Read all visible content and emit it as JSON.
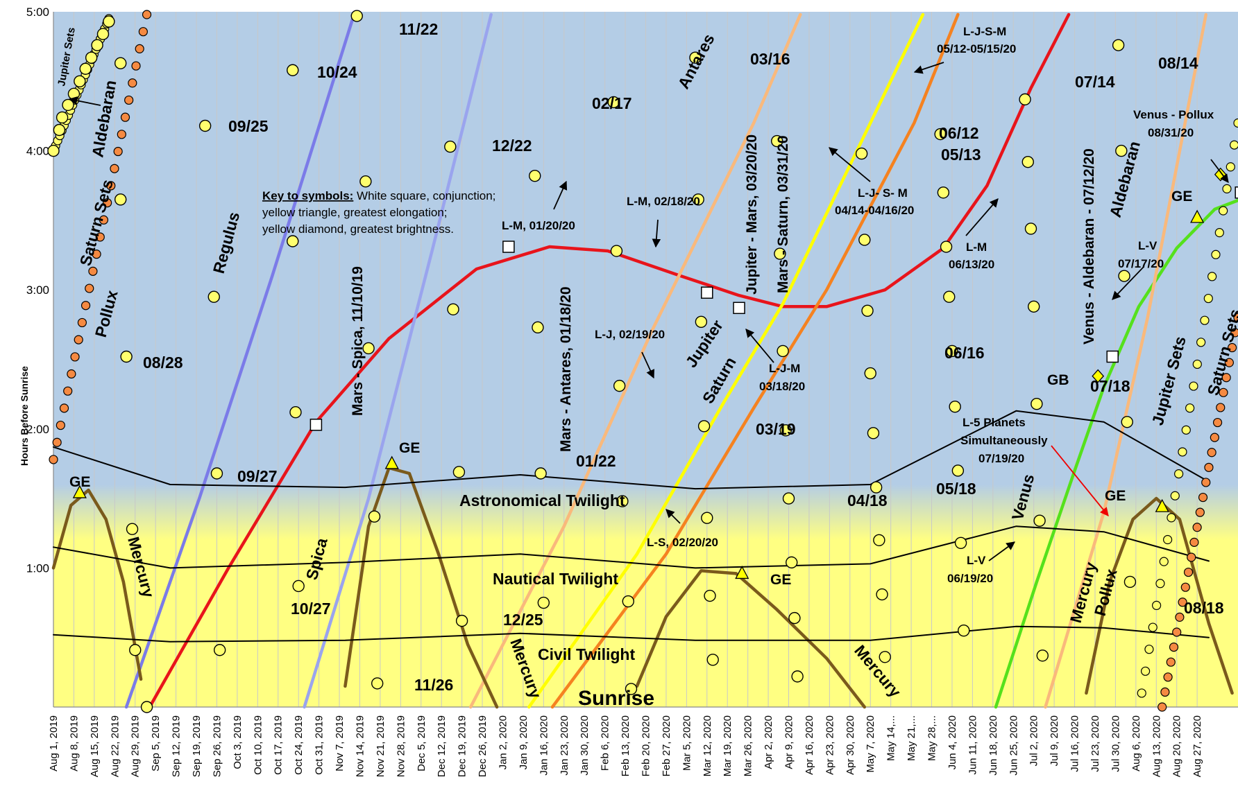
{
  "chart_data": {
    "type": "line",
    "ylabel": "Hours Before Sunrise",
    "y_ticks": [
      "5:00",
      "4:00",
      "3:00",
      "2:00",
      "1:00"
    ],
    "ylim": [
      0,
      5
    ],
    "x_range": [
      "Aug 1, 2019",
      "Aug 31, 2020"
    ],
    "x_ticks": [
      "Aug 1, 2019",
      "Aug 8, 2019",
      "Aug 15, 2019",
      "Aug 22, 2019",
      "Aug 29, 2019",
      "Sep 5, 2019",
      "Sep 12, 2019",
      "Sep 19, 2019",
      "Sep 26, 2019",
      "Oct 3, 2019",
      "Oct 10, 2019",
      "Oct 17, 2019",
      "Oct 24, 2019",
      "Oct 31, 2019",
      "Nov 7, 2019",
      "Nov 14, 2019",
      "Nov 21, 2019",
      "Nov 28, 2019",
      "Dec 5, 2019",
      "Dec 12, 2019",
      "Dec 19, 2019",
      "Dec 26, 2019",
      "Jan 2, 2020",
      "Jan 9, 2020",
      "Jan 16, 2020",
      "Jan 23, 2020",
      "Jan 30, 2020",
      "Feb 6, 2020",
      "Feb 13, 2020",
      "Feb 20, 2020",
      "Feb 27, 2020",
      "Mar 5, 2020",
      "Mar 12, 2020",
      "Mar 19, 2020",
      "Mar 26, 2020",
      "Apr 2, 2020",
      "Apr 9, 2020",
      "Apr 16, 2020",
      "Apr 23, 2020",
      "Apr 30, 2020",
      "May 7, 2020",
      "May 14,...",
      "May 21,...",
      "May 28,...",
      "Jun 4, 2020",
      "Jun 11, 2020",
      "Jun 18, 2020",
      "Jun 25, 2020",
      "Jul 2, 2020",
      "Jul 9, 2020",
      "Jul 16, 2020",
      "Jul 23, 2020",
      "Jul 30, 2020",
      "Aug 6, 2020",
      "Aug 13, 2020",
      "Aug 20, 2020",
      "Aug 27, 2020"
    ],
    "series": [
      {
        "name": "Mars",
        "color": "#e8141b",
        "points": [
          [
            33,
            0
          ],
          [
            60,
            1.0
          ],
          [
            90,
            2.05
          ],
          [
            115,
            2.65
          ],
          [
            145,
            3.15
          ],
          [
            170,
            3.31
          ],
          [
            190,
            3.28
          ],
          [
            215,
            3.1
          ],
          [
            235,
            2.96
          ],
          [
            250,
            2.88
          ],
          [
            265,
            2.88
          ],
          [
            285,
            3.0
          ],
          [
            305,
            3.3
          ],
          [
            320,
            3.75
          ],
          [
            335,
            4.45
          ],
          [
            348,
            4.98
          ]
        ]
      },
      {
        "name": "Jupiter",
        "color": "#ffff00",
        "points": [
          [
            163,
            0
          ],
          [
            200,
            1.1
          ],
          [
            230,
            2.2
          ],
          [
            250,
            2.9
          ],
          [
            280,
            4.2
          ],
          [
            298,
            4.98
          ]
        ]
      },
      {
        "name": "Saturn",
        "color": "#f58220",
        "points": [
          [
            171,
            0
          ],
          [
            210,
            1.1
          ],
          [
            240,
            2.15
          ],
          [
            265,
            3.0
          ],
          [
            295,
            4.2
          ],
          [
            310,
            4.98
          ]
        ]
      },
      {
        "name": "Antares",
        "color": "#f9b97c",
        "points": [
          [
            143,
            0
          ],
          [
            175,
            1.3
          ],
          [
            205,
            2.7
          ],
          [
            240,
            4.2
          ],
          [
            256,
            4.98
          ]
        ]
      },
      {
        "name": "Regulus",
        "color": "#7b7be8",
        "points": [
          [
            25,
            0
          ],
          [
            50,
            1.5
          ],
          [
            75,
            3.1
          ],
          [
            103,
            4.98
          ]
        ]
      },
      {
        "name": "Spica",
        "color": "#9aa4ee",
        "points": [
          [
            86,
            0
          ],
          [
            108,
            1.5
          ],
          [
            130,
            3.3
          ],
          [
            150,
            4.98
          ]
        ]
      },
      {
        "name": "Venus",
        "color": "#55e11c",
        "points": [
          [
            323,
            0
          ],
          [
            337,
            0.9
          ],
          [
            350,
            1.7
          ],
          [
            360,
            2.3
          ],
          [
            372,
            2.88
          ],
          [
            385,
            3.3
          ],
          [
            398,
            3.58
          ],
          [
            413,
            3.7
          ]
        ]
      },
      {
        "name": "Aldebaran",
        "color": "#f9b97c",
        "points": [
          [
            340,
            0
          ],
          [
            360,
            1.4
          ],
          [
            375,
            2.8
          ],
          [
            395,
            4.98
          ]
        ]
      },
      {
        "name": "Mercury GE 2019-08",
        "color": "#7a5a1c",
        "points": [
          [
            0,
            1.0
          ],
          [
            6,
            1.45
          ],
          [
            12,
            1.56
          ],
          [
            18,
            1.35
          ],
          [
            24,
            0.9
          ],
          [
            30,
            0.2
          ]
        ]
      },
      {
        "name": "Mercury GE 2019-11",
        "color": "#7a5a1c",
        "points": [
          [
            100,
            0.15
          ],
          [
            108,
            1.3
          ],
          [
            115,
            1.72
          ],
          [
            122,
            1.68
          ],
          [
            132,
            1.1
          ],
          [
            142,
            0.45
          ],
          [
            152,
            0
          ]
        ]
      },
      {
        "name": "Mercury GE 2020-03",
        "color": "#7a5a1c",
        "points": [
          [
            200,
            0.15
          ],
          [
            210,
            0.65
          ],
          [
            222,
            0.98
          ],
          [
            234,
            0.96
          ],
          [
            248,
            0.7
          ],
          [
            265,
            0.35
          ],
          [
            278,
            0
          ]
        ]
      },
      {
        "name": "Mercury GE 2020-07",
        "color": "#7a5a1c",
        "points": [
          [
            354,
            0.1
          ],
          [
            362,
            0.9
          ],
          [
            370,
            1.35
          ],
          [
            378,
            1.5
          ],
          [
            386,
            1.35
          ],
          [
            396,
            0.6
          ],
          [
            404,
            0.1
          ]
        ]
      },
      {
        "name": "Astronomical Twilight",
        "color": "#000000",
        "points": [
          [
            0,
            1.87
          ],
          [
            40,
            1.6
          ],
          [
            100,
            1.58
          ],
          [
            160,
            1.67
          ],
          [
            220,
            1.57
          ],
          [
            280,
            1.6
          ],
          [
            330,
            2.13
          ],
          [
            360,
            2.05
          ],
          [
            396,
            1.62
          ]
        ]
      },
      {
        "name": "Nautical Twilight",
        "color": "#000000",
        "points": [
          [
            0,
            1.15
          ],
          [
            40,
            1.0
          ],
          [
            100,
            1.04
          ],
          [
            160,
            1.1
          ],
          [
            220,
            1.0
          ],
          [
            280,
            1.03
          ],
          [
            330,
            1.3
          ],
          [
            360,
            1.26
          ],
          [
            396,
            1.05
          ]
        ]
      },
      {
        "name": "Civil Twilight",
        "color": "#000000",
        "points": [
          [
            0,
            0.52
          ],
          [
            40,
            0.47
          ],
          [
            100,
            0.48
          ],
          [
            160,
            0.53
          ],
          [
            220,
            0.48
          ],
          [
            280,
            0.48
          ],
          [
            330,
            0.58
          ],
          [
            360,
            0.57
          ],
          [
            396,
            0.5
          ]
        ]
      }
    ],
    "moon_points": [
      [
        0,
        4.0
      ],
      [
        2,
        4.15
      ],
      [
        3,
        4.24
      ],
      [
        5,
        4.33
      ],
      [
        7,
        4.41
      ],
      [
        9,
        4.5
      ],
      [
        11,
        4.59
      ],
      [
        13,
        4.67
      ],
      [
        15,
        4.76
      ],
      [
        17,
        4.84
      ],
      [
        19,
        4.93
      ],
      [
        23,
        4.63
      ],
      [
        23,
        3.65
      ],
      [
        25,
        2.52
      ],
      [
        27,
        1.28
      ],
      [
        28,
        0.41
      ],
      [
        32,
        0
      ],
      [
        52,
        4.18
      ],
      [
        55,
        2.95
      ],
      [
        56,
        1.68
      ],
      [
        57,
        0.41
      ],
      [
        82,
        4.58
      ],
      [
        82,
        3.35
      ],
      [
        83,
        2.12
      ],
      [
        84,
        0.87
      ],
      [
        104,
        4.97
      ],
      [
        107,
        3.78
      ],
      [
        108,
        2.58
      ],
      [
        110,
        1.37
      ],
      [
        111,
        0.17
      ],
      [
        136,
        4.03
      ],
      [
        137,
        2.86
      ],
      [
        139,
        1.69
      ],
      [
        140,
        0.62
      ],
      [
        165,
        3.82
      ],
      [
        166,
        2.73
      ],
      [
        167,
        1.68
      ],
      [
        168,
        0.75
      ],
      [
        192,
        4.35
      ],
      [
        193,
        3.28
      ],
      [
        194,
        2.31
      ],
      [
        195,
        1.48
      ],
      [
        197,
        0.76
      ],
      [
        198,
        0.13
      ],
      [
        220,
        4.67
      ],
      [
        221,
        3.65
      ],
      [
        222,
        2.77
      ],
      [
        223,
        2.02
      ],
      [
        224,
        1.36
      ],
      [
        225,
        0.8
      ],
      [
        226,
        0.34
      ],
      [
        248,
        4.07
      ],
      [
        249,
        3.26
      ],
      [
        250,
        2.56
      ],
      [
        251,
        1.99
      ],
      [
        252,
        1.5
      ],
      [
        253,
        1.04
      ],
      [
        254,
        0.64
      ],
      [
        255,
        0.22
      ],
      [
        277,
        3.98
      ],
      [
        278,
        3.36
      ],
      [
        279,
        2.85
      ],
      [
        280,
        2.4
      ],
      [
        281,
        1.97
      ],
      [
        282,
        1.58
      ],
      [
        283,
        1.2
      ],
      [
        284,
        0.81
      ],
      [
        285,
        0.36
      ],
      [
        304,
        4.12
      ],
      [
        305,
        3.7
      ],
      [
        306,
        3.31
      ],
      [
        307,
        2.95
      ],
      [
        308,
        2.56
      ],
      [
        309,
        2.16
      ],
      [
        310,
        1.7
      ],
      [
        311,
        1.18
      ],
      [
        312,
        0.55
      ],
      [
        333,
        4.37
      ],
      [
        334,
        3.92
      ],
      [
        335,
        3.44
      ],
      [
        336,
        2.88
      ],
      [
        337,
        2.18
      ],
      [
        338,
        1.34
      ],
      [
        339,
        0.37
      ],
      [
        365,
        4.76
      ],
      [
        366,
        4.0
      ],
      [
        367,
        3.1
      ],
      [
        368,
        2.05
      ],
      [
        369,
        0.9
      ]
    ],
    "conjunctions": [
      [
        90,
        2.03
      ],
      [
        156,
        3.31
      ],
      [
        224,
        2.98
      ],
      [
        235,
        2.87
      ],
      [
        363,
        2.52
      ],
      [
        407,
        3.7
      ]
    ],
    "elongations": [
      [
        9,
        1.54
      ],
      [
        116,
        1.75
      ],
      [
        236,
        0.96
      ],
      [
        380,
        1.44
      ],
      [
        392,
        3.52
      ]
    ],
    "brightness": [
      [
        358,
        2.38
      ],
      [
        400,
        3.83
      ]
    ],
    "planet_sets": [
      {
        "name": "Jupiter Sets (2019)",
        "points": [
          [
            0,
            4.0
          ],
          [
            19,
            4.95
          ]
        ]
      },
      {
        "name": "Saturn Sets (2019)",
        "points": [
          [
            0,
            1.78
          ],
          [
            32,
            4.98
          ]
        ]
      },
      {
        "name": "Jupiter Sets (2020)",
        "points": [
          [
            373,
            0.1
          ],
          [
            406,
            4.2
          ]
        ]
      },
      {
        "name": "Saturn Sets (2020)",
        "points": [
          [
            380,
            0
          ],
          [
            406,
            2.8
          ]
        ]
      }
    ]
  },
  "labels": {
    "key_title": "Key to symbols:",
    "key_line1": " White square, conjunction;",
    "key_line2": "yellow triangle, greatest elongation;",
    "key_line3": "yellow diamond, greatest brightness.",
    "astronomical": "Astronomical Twilight",
    "nautical": "Nautical Twilight",
    "civil": "Civil Twilight",
    "sunrise": "Sunrise",
    "jupiter_sets_2019": "Jupiter Sets",
    "aldebaran_2019": "Aldebaran",
    "saturn_sets_2019": "Saturn Sets",
    "pollux_2019": "Pollux",
    "regulus": "Regulus",
    "spica": "Spica",
    "mercury_1": "Mercury",
    "mercury_2": "Mercury",
    "mercury_3": "Mercury",
    "mercury_4": "Mercury",
    "antares": "Antares",
    "jupiter": "Jupiter",
    "saturn": "Saturn",
    "venus": "Venus",
    "aldebaran_2020": "Aldebaran",
    "pollux_2020": "Pollux",
    "jupiter_sets_2020": "Jupiter Sets",
    "saturn_sets_2020": "Saturn Sets",
    "conj_mars_spica": "Mars - Spica, 11/10/19",
    "conj_mars_antares": "Mars - Antares, 01/18/20",
    "conj_jupiter_mars": "Jupiter - Mars, 03/20/20",
    "conj_mars_saturn": "Mars - Saturn, 03/31/20",
    "conj_venus_aldebaran": "Venus - Aldebaran - 07/12/20",
    "ge": "GE",
    "gb": "GB",
    "lm_0120": "L-M, 01/20/20",
    "lm_0218": "L-M, 02/18/20",
    "lj_0219": "L-J, 02/19/20",
    "ls_0220": "L-S, 02/20/20",
    "ljm_1": "L-J-M",
    "ljm_2": "03/18/20",
    "ljsm_a1": "L-J- S- M",
    "ljsm_a2": "04/14-04/16/20",
    "ljsm_b1": "L-J-S-M",
    "ljsm_b2": "05/12-05/15/20",
    "lm_0613_1": "L-M",
    "lm_0613_2": "06/13/20",
    "lv_0619_1": "L-V",
    "lv_0619_2": "06/19/20",
    "lv_0717_1": "L-V",
    "lv_0717_2": "07/17/20",
    "l5_1": "L-5 Planets",
    "l5_2": "Simultaneously",
    "l5_3": "07/19/20",
    "vp_1": "Venus - Pollux",
    "vp_2": "08/31/20",
    "d_1122": "11/22",
    "d_1024": "10/24",
    "d_0925": "09/25",
    "d_1222": "12/22",
    "d_0217": "02/17",
    "d_0316": "03/16",
    "d_0513": "05/13",
    "d_0612": "06/12",
    "d_0714": "07/14",
    "d_0814": "08/14",
    "d_0828": "08/28",
    "d_0927": "09/27",
    "d_0122": "01/22",
    "d_0319": "03/19",
    "d_0418": "04/18",
    "d_0518": "05/18",
    "d_0616": "06/16",
    "d_0718": "07/18",
    "d_1027": "10/27",
    "d_1225": "12/25",
    "d_1126": "11/26",
    "d_0818": "08/18"
  },
  "colors": {
    "night": "#b4cde6",
    "twilight": "#ffff82",
    "grid": "#c8c8c8",
    "moon": "#ffff6e",
    "setting": "#f58a42"
  }
}
